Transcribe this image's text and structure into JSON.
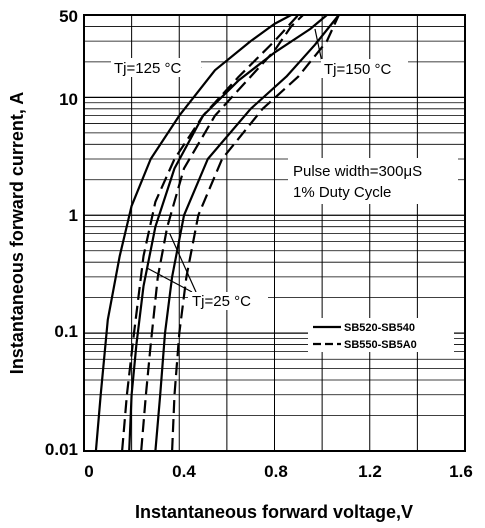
{
  "chart_data": {
    "type": "line",
    "title": "",
    "xlabel": "Instantaneous forward voltage,V",
    "ylabel": "Instantaneous forward current, A",
    "xlim": [
      0,
      1.6
    ],
    "ylim": [
      0.01,
      50
    ],
    "y_scale": "log",
    "x_ticks": [
      "0",
      "0.4",
      "0.8",
      "1.2",
      "1.6"
    ],
    "y_ticks": [
      "0.01",
      "0.1",
      "1",
      "10",
      "50"
    ],
    "grid": true,
    "legend_position": "right",
    "series": [
      {
        "name": "SB520-SB540",
        "condition": "Tj=125 °C",
        "line_style": "solid",
        "points": [
          [
            0.05,
            0.01
          ],
          [
            0.07,
            0.03
          ],
          [
            0.1,
            0.13
          ],
          [
            0.15,
            0.45
          ],
          [
            0.2,
            1.2
          ],
          [
            0.28,
            3
          ],
          [
            0.4,
            7
          ],
          [
            0.55,
            17
          ],
          [
            0.7,
            30
          ],
          [
            0.8,
            42
          ],
          [
            0.87,
            50
          ]
        ]
      },
      {
        "name": "SB520-SB540",
        "condition": "Tj=150 °C",
        "line_style": "solid",
        "points": [
          [
            0.19,
            0.01
          ],
          [
            0.2,
            0.03
          ],
          [
            0.22,
            0.08
          ],
          [
            0.25,
            0.25
          ],
          [
            0.3,
            0.8
          ],
          [
            0.38,
            2.5
          ],
          [
            0.5,
            7
          ],
          [
            0.65,
            14
          ],
          [
            0.8,
            24
          ],
          [
            0.95,
            38
          ],
          [
            1.02,
            50
          ]
        ]
      },
      {
        "name": "SB520-SB540",
        "condition": "Tj=25 °C",
        "line_style": "solid",
        "points": [
          [
            0.3,
            0.01
          ],
          [
            0.32,
            0.03
          ],
          [
            0.34,
            0.1
          ],
          [
            0.37,
            0.3
          ],
          [
            0.42,
            1
          ],
          [
            0.52,
            3
          ],
          [
            0.7,
            8
          ],
          [
            0.85,
            15
          ],
          [
            0.97,
            28
          ],
          [
            1.07,
            50
          ]
        ]
      },
      {
        "name": "SB550-SB5A0",
        "condition": "Tj=125 °C",
        "line_style": "dashed",
        "points": [
          [
            0.16,
            0.01
          ],
          [
            0.18,
            0.03
          ],
          [
            0.21,
            0.1
          ],
          [
            0.25,
            0.45
          ],
          [
            0.3,
            1.3
          ],
          [
            0.38,
            3
          ],
          [
            0.5,
            7
          ],
          [
            0.65,
            15
          ],
          [
            0.8,
            30
          ],
          [
            0.9,
            50
          ]
        ]
      },
      {
        "name": "SB550-SB5A0",
        "condition": "Tj=150 °C",
        "line_style": "dashed",
        "points": [
          [
            0.24,
            0.01
          ],
          [
            0.26,
            0.03
          ],
          [
            0.28,
            0.08
          ],
          [
            0.31,
            0.3
          ],
          [
            0.35,
            0.8
          ],
          [
            0.42,
            2.5
          ],
          [
            0.55,
            7
          ],
          [
            0.7,
            15
          ],
          [
            0.8,
            25
          ],
          [
            0.87,
            40
          ],
          [
            0.92,
            50
          ]
        ]
      },
      {
        "name": "SB550-SB5A0",
        "condition": "Tj=25 °C",
        "line_style": "dashed",
        "points": [
          [
            0.37,
            0.01
          ],
          [
            0.38,
            0.03
          ],
          [
            0.4,
            0.1
          ],
          [
            0.43,
            0.3
          ],
          [
            0.48,
            1
          ],
          [
            0.58,
            3
          ],
          [
            0.75,
            8
          ],
          [
            0.9,
            15
          ],
          [
            1.02,
            30
          ],
          [
            1.07,
            50
          ]
        ]
      }
    ],
    "annotations": [
      {
        "text": "Tj=125 °C",
        "points_to": [
          0.48,
          17
        ]
      },
      {
        "text": "Tj=150 °C",
        "points_to": [
          0.97,
          38
        ]
      },
      {
        "text": "Tj=25 °C",
        "points_to": [
          0.36,
          0.7
        ]
      },
      {
        "text": "Pulse width=300μS"
      },
      {
        "text": "1% Duty Cycle"
      }
    ]
  }
}
